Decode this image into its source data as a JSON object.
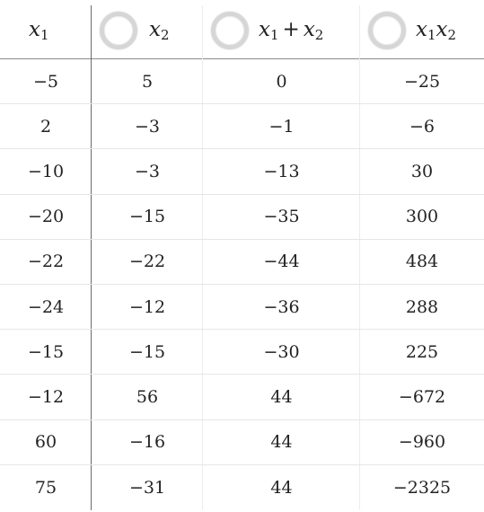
{
  "table": {
    "columns": [
      {
        "var": "x",
        "sub": "1",
        "has_toggle": false
      },
      {
        "var": "x",
        "sub": "2",
        "has_toggle": true
      },
      {
        "var_a": "x",
        "sub_a": "1",
        "op": "+",
        "var_b": "x",
        "sub_b": "2",
        "has_toggle": true
      },
      {
        "var_a": "x",
        "sub_a": "1",
        "var_b": "x",
        "sub_b": "2",
        "has_toggle": true
      }
    ],
    "rows": [
      [
        "−5",
        "5",
        "0",
        "−25"
      ],
      [
        "2",
        "−3",
        "−1",
        "−6"
      ],
      [
        "−10",
        "−3",
        "−13",
        "30"
      ],
      [
        "−20",
        "−15",
        "−35",
        "300"
      ],
      [
        "−22",
        "−22",
        "−44",
        "484"
      ],
      [
        "−24",
        "−12",
        "−36",
        "288"
      ],
      [
        "−15",
        "−15",
        "−30",
        "225"
      ],
      [
        "−12",
        "56",
        "44",
        "−672"
      ],
      [
        "60",
        "−16",
        "44",
        "−960"
      ],
      [
        "75",
        "−31",
        "44",
        "−2325"
      ]
    ]
  }
}
